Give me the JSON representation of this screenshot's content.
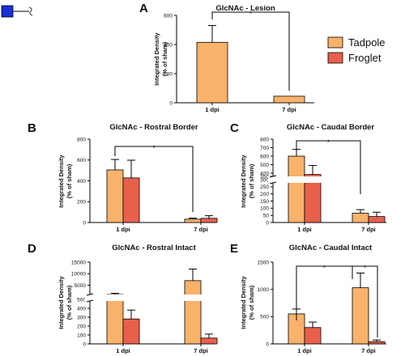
{
  "colors": {
    "tadpole": "#F9B26A",
    "froglet": "#E8604C",
    "glyph": "#1a2fd6"
  },
  "legend": {
    "items": [
      {
        "label": "Tadpole",
        "series": "tadpole"
      },
      {
        "label": "Froglet",
        "series": "froglet"
      }
    ]
  },
  "header_icon": "glycan-square-glcnac-icon",
  "chart_data": [
    {
      "panel": "A",
      "type": "bar",
      "title": "GlcNAc - Lesion",
      "ylabel": "Integrated Density (% of sham)",
      "xlabel": "",
      "categories": [
        "1 dpi",
        "7 dpi"
      ],
      "yticks": [
        "0",
        "200",
        "400",
        "600"
      ],
      "ylim": [
        0,
        600
      ],
      "series": [
        {
          "name": "tadpole",
          "values": [
            415,
            45
          ],
          "errors": [
            115,
            0
          ]
        }
      ],
      "significance": [
        {
          "label": "*",
          "between": [
            "1 dpi",
            "7 dpi"
          ]
        }
      ]
    },
    {
      "panel": "B",
      "type": "bar",
      "title": "GlcNAc - Rostral Border",
      "ylabel": "Integrated Density (% of sham)",
      "xlabel": "",
      "categories": [
        "1 dpi",
        "7 dpi"
      ],
      "yticks": [
        "0",
        "200",
        "400",
        "600",
        "800"
      ],
      "ylim": [
        0,
        800
      ],
      "series": [
        {
          "name": "tadpole",
          "values": [
            505,
            32
          ],
          "errors": [
            100,
            10
          ]
        },
        {
          "name": "froglet",
          "values": [
            428,
            40
          ],
          "errors": [
            170,
            25
          ]
        }
      ],
      "significance": [
        {
          "label": "*",
          "between": [
            "1 dpi",
            "7 dpi"
          ]
        }
      ]
    },
    {
      "panel": "C",
      "type": "bar",
      "title": "GlcNAc - Caudal Border",
      "ylabel": "Integrated Density (% of sham)",
      "xlabel": "",
      "categories": [
        "1 dpi",
        "7 dpi"
      ],
      "yticks": [
        "0",
        "50",
        "100",
        "150",
        "200",
        "250",
        "300",
        "350",
        "400",
        "500",
        "600",
        "700",
        "800"
      ],
      "ylim": [
        0,
        800
      ],
      "axis_break": [
        300,
        400
      ],
      "series": [
        {
          "name": "tadpole",
          "values": [
            600,
            65
          ],
          "errors": [
            80,
            25
          ]
        },
        {
          "name": "froglet",
          "values": [
            380,
            42
          ],
          "errors": [
            110,
            30
          ]
        }
      ],
      "significance": [
        {
          "label": "*",
          "between": [
            "1 dpi",
            "7 dpi"
          ]
        }
      ]
    },
    {
      "panel": "D",
      "type": "bar",
      "title": "GlcNAc - Rostral Intact",
      "ylabel": "Integrated Density (% of sham)",
      "xlabel": "",
      "categories": [
        "1 dpi",
        "7 dpi"
      ],
      "yticks": [
        "0",
        "100",
        "200",
        "300",
        "400",
        "500",
        "5000",
        "10000",
        "15000"
      ],
      "ylim": [
        0,
        15000
      ],
      "axis_break": [
        500,
        1000
      ],
      "series": [
        {
          "name": "tadpole",
          "values": [
            1000,
            7000
          ],
          "errors": [
            500,
            5000
          ]
        },
        {
          "name": "froglet",
          "values": [
            280,
            65
          ],
          "errors": [
            100,
            45
          ]
        }
      ],
      "significance": []
    },
    {
      "panel": "E",
      "type": "bar",
      "title": "GlcNAc - Caudal Intact",
      "ylabel": "Integrated Density (% of sham)",
      "xlabel": "",
      "categories": [
        "1 dpi",
        "7 dpi"
      ],
      "yticks": [
        "0",
        "500",
        "1000",
        "1500"
      ],
      "ylim": [
        0,
        1500
      ],
      "series": [
        {
          "name": "tadpole",
          "values": [
            550,
            1030
          ],
          "errors": [
            90,
            270
          ]
        },
        {
          "name": "froglet",
          "values": [
            300,
            40
          ],
          "errors": [
            100,
            30
          ]
        }
      ],
      "significance": [
        {
          "label": "*",
          "between": [
            "1 dpi",
            "7 dpi"
          ]
        },
        {
          "label": "*",
          "between": [
            "7 dpi tadpole",
            "7 dpi froglet"
          ]
        }
      ]
    }
  ]
}
